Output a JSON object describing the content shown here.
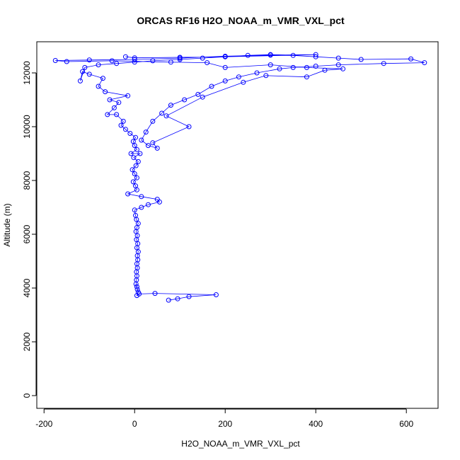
{
  "chart_data": {
    "type": "line",
    "title": "ORCAS RF16 H2O_NOAA_m_VMR_VXL_pct",
    "x_label": "H2O_NOAA_m_VMR_VXL_pct",
    "y_label": "Altitude (m)",
    "color": "#0000ff",
    "marker": "circle",
    "xlim": [
      -216,
      670
    ],
    "ylim": [
      -474,
      13158
    ],
    "xticks": [
      -200,
      0,
      200,
      400,
      600
    ],
    "yticks": [
      0,
      2000,
      4000,
      6000,
      8000,
      10000,
      12000
    ],
    "x": [
      75,
      95,
      120,
      180,
      45,
      10,
      5,
      8,
      6,
      5,
      3,
      4,
      5,
      4,
      6,
      5,
      7,
      6,
      8,
      5,
      7,
      4,
      6,
      3,
      5,
      8,
      4,
      2,
      0,
      15,
      30,
      55,
      50,
      15,
      -15,
      5,
      2,
      -3,
      5,
      0,
      -5,
      3,
      8,
      -2,
      12,
      -8,
      5,
      0,
      -3,
      2,
      -10,
      -20,
      -30,
      -25,
      -40,
      -60,
      -45,
      -35,
      -55,
      -15,
      -65,
      -80,
      -70,
      -100,
      -115,
      -120,
      -110,
      -80,
      -40,
      0,
      40,
      100,
      150,
      200,
      250,
      300,
      350,
      400,
      450,
      500,
      610,
      640,
      550,
      450,
      400,
      350,
      320,
      270,
      230,
      200,
      170,
      140,
      110,
      80,
      60,
      40,
      25,
      15,
      30,
      50,
      40,
      120,
      70,
      150,
      240,
      290,
      380,
      420,
      460,
      380,
      300,
      200,
      160,
      80,
      -50,
      -150,
      -175,
      -100,
      0,
      100,
      200,
      300,
      400,
      200,
      100,
      0,
      -20
    ],
    "y": [
      3550,
      3600,
      3680,
      3750,
      3800,
      3780,
      3720,
      3850,
      3950,
      4050,
      4150,
      4300,
      4450,
      4600,
      4750,
      4900,
      5050,
      5200,
      5350,
      5500,
      5650,
      5800,
      5950,
      6100,
      6250,
      6400,
      6550,
      6700,
      6900,
      7000,
      7100,
      7200,
      7300,
      7400,
      7500,
      7650,
      7800,
      7950,
      8100,
      8250,
      8400,
      8550,
      8700,
      8850,
      9000,
      9000,
      9150,
      9300,
      9450,
      9600,
      9750,
      9900,
      10050,
      10200,
      10450,
      10450,
      10700,
      10900,
      11000,
      11150,
      11300,
      11500,
      11800,
      11950,
      12050,
      11700,
      12200,
      12300,
      12350,
      12400,
      12450,
      12500,
      12550,
      12600,
      12650,
      12680,
      12650,
      12600,
      12550,
      12500,
      12520,
      12380,
      12350,
      12300,
      12250,
      12200,
      12150,
      12000,
      11850,
      11700,
      11500,
      11200,
      11000,
      10800,
      10500,
      10200,
      9800,
      9500,
      9300,
      9200,
      9400,
      10000,
      10400,
      11100,
      11650,
      11900,
      11850,
      12100,
      12150,
      12200,
      12300,
      12200,
      12380,
      12400,
      12450,
      12420,
      12460,
      12480,
      12500,
      12550,
      12620,
      12660,
      12680,
      12600,
      12580,
      12560,
      12600
    ]
  }
}
